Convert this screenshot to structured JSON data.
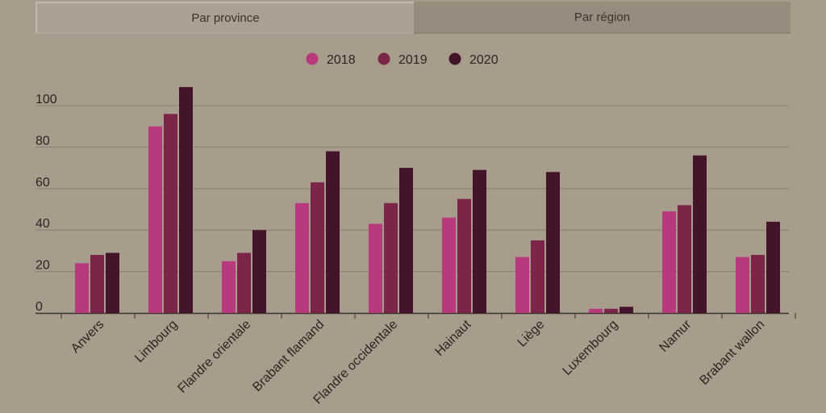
{
  "tabs": [
    {
      "label": "Par province",
      "active": true
    },
    {
      "label": "Par région",
      "active": false
    }
  ],
  "colors": {
    "2018": "#b83a7c",
    "2019": "#7b2548",
    "2020": "#44152a",
    "grid": "#8a7f72",
    "text": "#2b241f",
    "axis": "#3a322c"
  },
  "chart_data": {
    "type": "bar",
    "categories": [
      "Anvers",
      "Limbourg",
      "Flandre orientale",
      "Brabant flamand",
      "Flandre occidentale",
      "Hainaut",
      "Liège",
      "Luxembourg",
      "Namur",
      "Brabant wallon"
    ],
    "series": [
      {
        "name": "2018",
        "values": [
          24,
          90,
          25,
          53,
          43,
          46,
          27,
          2,
          49,
          27
        ]
      },
      {
        "name": "2019",
        "values": [
          28,
          96,
          29,
          63,
          53,
          55,
          35,
          2,
          52,
          28
        ]
      },
      {
        "name": "2020",
        "values": [
          29,
          109,
          40,
          78,
          70,
          69,
          68,
          3,
          76,
          44
        ]
      }
    ],
    "yticks": [
      0,
      20,
      40,
      60,
      80,
      100
    ],
    "ylim": [
      0,
      110
    ],
    "title": "",
    "xlabel": "",
    "ylabel": "",
    "grid": true,
    "legend": "top-center"
  }
}
